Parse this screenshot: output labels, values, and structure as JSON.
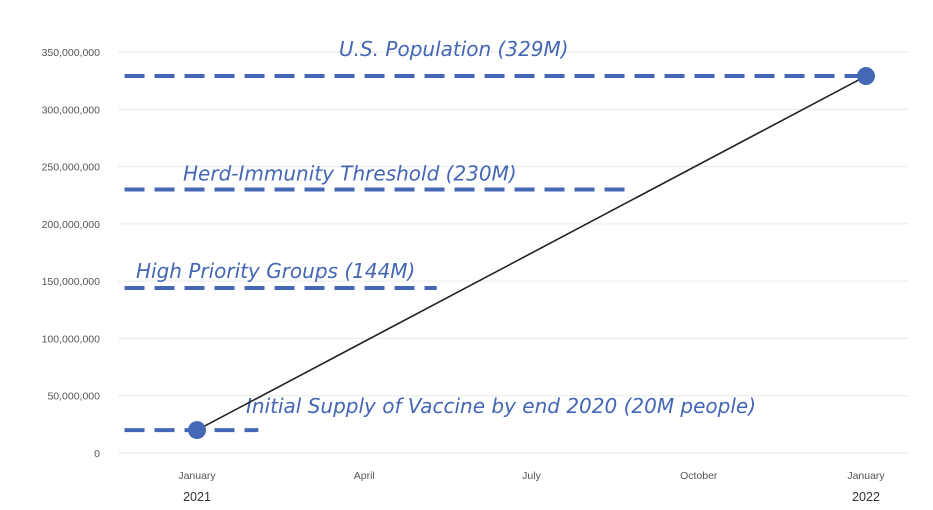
{
  "chart_data": {
    "type": "line",
    "ylim": [
      0,
      350000000
    ],
    "y_ticks": [
      "0",
      "50,000,000",
      "100,000,000",
      "150,000,000",
      "200,000,000",
      "250,000,000",
      "300,000,000",
      "350,000,000"
    ],
    "x_ticks": [
      {
        "label": "January",
        "sub": "2021",
        "month": 0
      },
      {
        "label": "April",
        "sub": "",
        "month": 3
      },
      {
        "label": "July",
        "sub": "",
        "month": 6
      },
      {
        "label": "October",
        "sub": "",
        "month": 9
      },
      {
        "label": "January",
        "sub": "2022",
        "month": 12
      }
    ],
    "series": [
      {
        "points": [
          {
            "month": 0,
            "y": 20000000
          },
          {
            "month": 12,
            "y": 329000000
          }
        ]
      }
    ],
    "reference_lines": [
      {
        "text": "U.S. Population (329M)",
        "y": 329000000,
        "x_start": -1.3,
        "x_end": 12.1
      },
      {
        "text": "Herd-Immunity Threshold (230M)",
        "y": 230000000,
        "x_start": -1.3,
        "x_end": 7.8
      },
      {
        "text": "High Priority Groups (144M)",
        "y": 144000000,
        "x_start": -1.3,
        "x_end": 4.3
      },
      {
        "text": "Initial Supply of Vaccine by end 2020 (20M people)",
        "y": 20000000,
        "x_start": -1.3,
        "x_end": 1.1
      }
    ],
    "grid": true,
    "legend": "none",
    "colors": {
      "series": "#4468b6",
      "trend": "#222222",
      "annotation": "#4466b4"
    }
  }
}
